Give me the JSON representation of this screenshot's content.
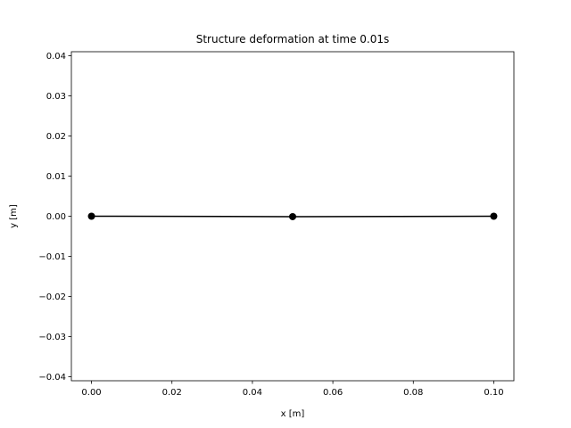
{
  "chart_data": {
    "type": "line",
    "title": "Structure deformation at time 0.01s",
    "xlabel": "x [m]",
    "ylabel": "y [m]",
    "xlim": [
      -0.005,
      0.105
    ],
    "ylim": [
      -0.041,
      0.041
    ],
    "x_ticks": [
      0.0,
      0.02,
      0.04,
      0.06,
      0.08,
      0.1
    ],
    "x_tick_labels": [
      "0.00",
      "0.02",
      "0.04",
      "0.06",
      "0.08",
      "0.10"
    ],
    "y_ticks": [
      0.04,
      0.03,
      0.02,
      0.01,
      0.0,
      -0.01,
      -0.02,
      -0.03,
      -0.04
    ],
    "y_tick_labels": [
      "0.04",
      "0.03",
      "0.02",
      "0.01",
      "0.00",
      "−0.01",
      "−0.02",
      "−0.03",
      "−0.04"
    ],
    "grid": false,
    "series": [
      {
        "x": [
          0.0,
          0.05,
          0.1
        ],
        "y": [
          0.0,
          -0.0001,
          0.0
        ],
        "color": "#000000",
        "marker": "circle"
      }
    ]
  }
}
